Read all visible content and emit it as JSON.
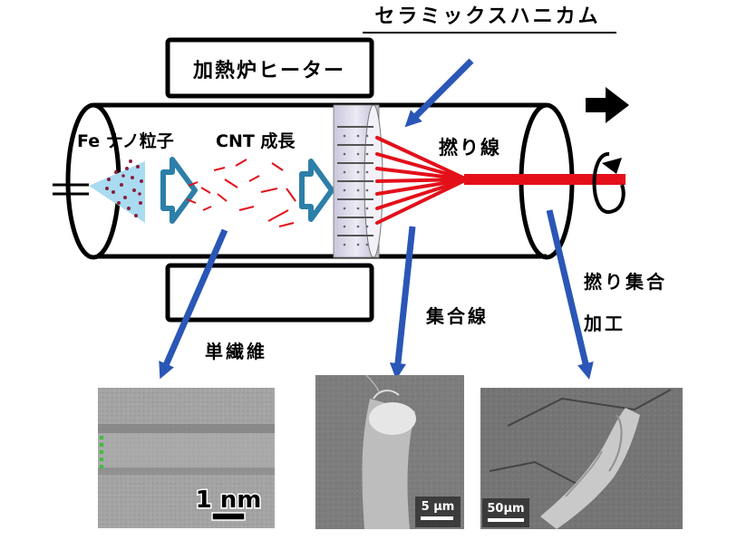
{
  "labels": {
    "honeycomb": "セラミックスハニカム",
    "heater": "加熱炉ヒーター",
    "fe_nano": "Fe ナノ粒子",
    "cnt_growth": "CNT 成長",
    "twisted_wire": "撚り線",
    "assembled_wire": "集合線",
    "twist_assembly_line1": "撚り集合",
    "twist_assembly_line2": "加工",
    "single_fiber": "単繊維"
  },
  "micrographs": [
    {
      "name": "tem-single-fiber",
      "scale_label": "1 nm"
    },
    {
      "name": "sem-assembled-wire",
      "scale_label": "5 μm"
    },
    {
      "name": "sem-twisted-assembly",
      "scale_label": "50μm"
    }
  ],
  "colors": {
    "outline": "#000000",
    "arrow_blue": "#2a56b6",
    "fiber_red": "#e3101a",
    "particle_dot": "#8a1f3a",
    "spray_fill": "#a9dbf1",
    "chevron_outline": "#2c7fa8",
    "honeycomb_fill": "#d9d6e8"
  },
  "icons": {
    "direction": "right-arrow-icon",
    "rotation": "rotation-arrow-icon"
  }
}
